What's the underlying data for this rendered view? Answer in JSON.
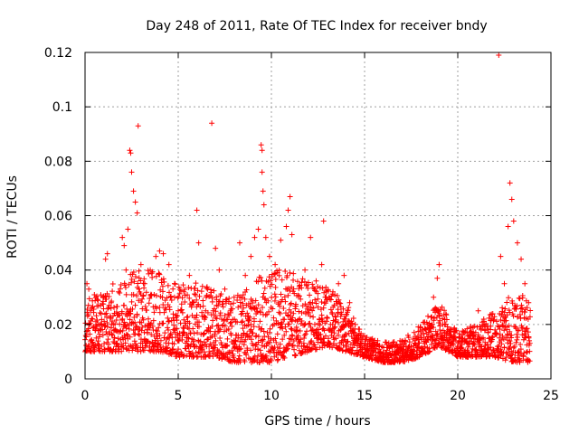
{
  "chart_data": {
    "type": "scatter",
    "title": "Day 248 of 2011, Rate Of TEC Index for receiver bndy",
    "xlabel": "GPS time / hours",
    "ylabel": "ROTI / TECUs",
    "xlim": [
      0,
      25
    ],
    "ylim": [
      0,
      0.12
    ],
    "x_ticks": [
      0,
      5,
      10,
      15,
      20,
      25
    ],
    "x_tick_labels": [
      "0",
      "5",
      "10",
      "15",
      "20",
      "25"
    ],
    "y_ticks": [
      0,
      0.02,
      0.04,
      0.06,
      0.08,
      0.1,
      0.12
    ],
    "y_tick_labels": [
      "0",
      "0.02",
      "0.04",
      "0.06",
      "0.08",
      "0.1",
      "0.12"
    ],
    "grid": true,
    "marker": "+",
    "series": [
      {
        "name": "ROTI",
        "color": "#ff0000",
        "points": [
          [
            0.1,
            0.035
          ],
          [
            0.2,
            0.033
          ],
          [
            0.3,
            0.025
          ],
          [
            0.4,
            0.022
          ],
          [
            0.5,
            0.01
          ],
          [
            0.6,
            0.015
          ],
          [
            0.8,
            0.02
          ],
          [
            1.0,
            0.03
          ],
          [
            1.1,
            0.044
          ],
          [
            1.2,
            0.046
          ],
          [
            1.4,
            0.028
          ],
          [
            1.6,
            0.018
          ],
          [
            1.8,
            0.032
          ],
          [
            2.0,
            0.052
          ],
          [
            2.1,
            0.049
          ],
          [
            2.2,
            0.04
          ],
          [
            2.3,
            0.055
          ],
          [
            2.4,
            0.084
          ],
          [
            2.45,
            0.083
          ],
          [
            2.5,
            0.076
          ],
          [
            2.6,
            0.069
          ],
          [
            2.7,
            0.065
          ],
          [
            2.8,
            0.061
          ],
          [
            2.85,
            0.093
          ],
          [
            3.0,
            0.042
          ],
          [
            3.2,
            0.035
          ],
          [
            3.5,
            0.04
          ],
          [
            3.8,
            0.045
          ],
          [
            4.0,
            0.047
          ],
          [
            4.2,
            0.046
          ],
          [
            4.5,
            0.042
          ],
          [
            4.8,
            0.03
          ],
          [
            5.0,
            0.025
          ],
          [
            5.3,
            0.032
          ],
          [
            5.6,
            0.038
          ],
          [
            5.8,
            0.028
          ],
          [
            6.0,
            0.062
          ],
          [
            6.1,
            0.05
          ],
          [
            6.3,
            0.034
          ],
          [
            6.5,
            0.03
          ],
          [
            6.8,
            0.094
          ],
          [
            7.0,
            0.048
          ],
          [
            7.2,
            0.04
          ],
          [
            7.5,
            0.033
          ],
          [
            7.8,
            0.025
          ],
          [
            8.0,
            0.03
          ],
          [
            8.3,
            0.05
          ],
          [
            8.6,
            0.038
          ],
          [
            8.9,
            0.045
          ],
          [
            9.1,
            0.052
          ],
          [
            9.3,
            0.055
          ],
          [
            9.45,
            0.086
          ],
          [
            9.5,
            0.084
          ],
          [
            9.5,
            0.076
          ],
          [
            9.55,
            0.069
          ],
          [
            9.6,
            0.064
          ],
          [
            9.7,
            0.052
          ],
          [
            9.9,
            0.045
          ],
          [
            10.2,
            0.042
          ],
          [
            10.5,
            0.051
          ],
          [
            10.8,
            0.056
          ],
          [
            10.9,
            0.062
          ],
          [
            11.0,
            0.067
          ],
          [
            11.1,
            0.053
          ],
          [
            11.5,
            0.034
          ],
          [
            11.8,
            0.04
          ],
          [
            12.1,
            0.052
          ],
          [
            12.4,
            0.036
          ],
          [
            12.7,
            0.042
          ],
          [
            12.8,
            0.058
          ],
          [
            13.1,
            0.03
          ],
          [
            13.3,
            0.032
          ],
          [
            13.6,
            0.035
          ],
          [
            13.9,
            0.038
          ],
          [
            14.2,
            0.028
          ],
          [
            14.5,
            0.02
          ],
          [
            14.8,
            0.015
          ],
          [
            15.1,
            0.012
          ],
          [
            15.4,
            0.01
          ],
          [
            15.7,
            0.014
          ],
          [
            16.0,
            0.008
          ],
          [
            16.3,
            0.012
          ],
          [
            16.6,
            0.01
          ],
          [
            16.9,
            0.014
          ],
          [
            17.2,
            0.009
          ],
          [
            17.5,
            0.012
          ],
          [
            17.8,
            0.015
          ],
          [
            18.1,
            0.018
          ],
          [
            18.4,
            0.023
          ],
          [
            18.7,
            0.03
          ],
          [
            18.9,
            0.037
          ],
          [
            19.0,
            0.042
          ],
          [
            19.3,
            0.02
          ],
          [
            19.6,
            0.018
          ],
          [
            19.9,
            0.014
          ],
          [
            20.2,
            0.011
          ],
          [
            20.5,
            0.013
          ],
          [
            20.8,
            0.016
          ],
          [
            21.1,
            0.025
          ],
          [
            21.4,
            0.02
          ],
          [
            21.7,
            0.015
          ],
          [
            22.0,
            0.018
          ],
          [
            22.2,
            0.119
          ],
          [
            22.3,
            0.045
          ],
          [
            22.5,
            0.035
          ],
          [
            22.7,
            0.056
          ],
          [
            22.8,
            0.072
          ],
          [
            22.9,
            0.066
          ],
          [
            23.0,
            0.058
          ],
          [
            23.2,
            0.05
          ],
          [
            23.4,
            0.044
          ],
          [
            23.6,
            0.035
          ],
          [
            23.8,
            0.028
          ]
        ],
        "base_band": [
          [
            0.0,
            0.01,
            0.03
          ],
          [
            1.0,
            0.01,
            0.032
          ],
          [
            2.0,
            0.01,
            0.038
          ],
          [
            3.0,
            0.01,
            0.04
          ],
          [
            4.0,
            0.01,
            0.04
          ],
          [
            5.0,
            0.008,
            0.034
          ],
          [
            6.0,
            0.008,
            0.036
          ],
          [
            7.0,
            0.008,
            0.032
          ],
          [
            8.0,
            0.006,
            0.03
          ],
          [
            9.0,
            0.006,
            0.036
          ],
          [
            10.0,
            0.006,
            0.04
          ],
          [
            11.0,
            0.008,
            0.04
          ],
          [
            12.0,
            0.01,
            0.036
          ],
          [
            13.0,
            0.012,
            0.034
          ],
          [
            14.0,
            0.01,
            0.028
          ],
          [
            15.0,
            0.008,
            0.016
          ],
          [
            16.0,
            0.006,
            0.014
          ],
          [
            17.0,
            0.006,
            0.014
          ],
          [
            18.0,
            0.008,
            0.02
          ],
          [
            19.0,
            0.012,
            0.028
          ],
          [
            20.0,
            0.008,
            0.018
          ],
          [
            21.0,
            0.008,
            0.02
          ],
          [
            22.0,
            0.008,
            0.025
          ],
          [
            23.0,
            0.006,
            0.032
          ],
          [
            23.9,
            0.006,
            0.03
          ]
        ]
      }
    ]
  }
}
